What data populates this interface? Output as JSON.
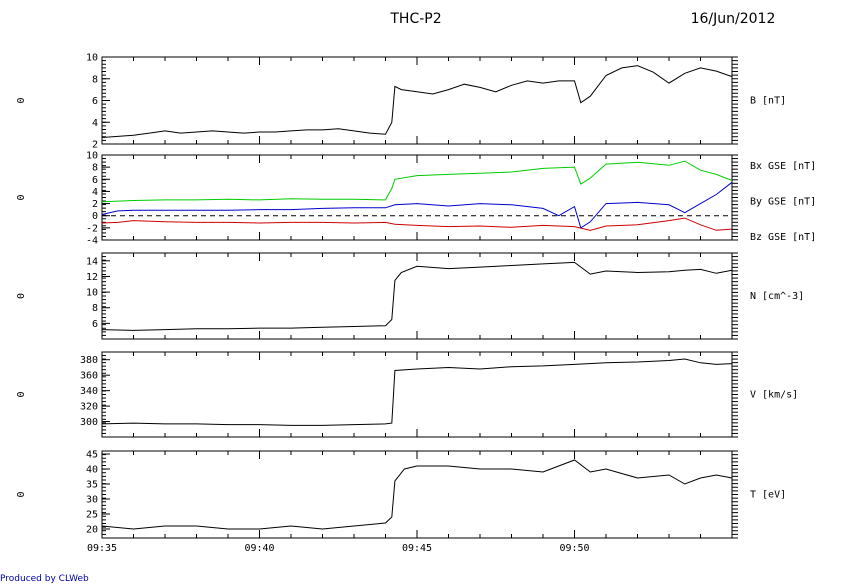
{
  "header": {
    "title": "THC-P2",
    "date": "16/Jun/2012"
  },
  "footer": {
    "credit": "Produced by CLWeb",
    "credit_color": "#0000aa"
  },
  "panel_left_label": "0",
  "chart_data": {
    "type": "line",
    "x_ticks": [
      "09:35",
      "09:40",
      "09:45",
      "09:50"
    ],
    "xlim": [
      "09:35",
      "09:55"
    ],
    "panels": [
      {
        "id": "b",
        "ylim": [
          2,
          10
        ],
        "yticks": [
          2,
          4,
          6,
          8,
          10
        ],
        "dashed_zero": false,
        "series": [
          {
            "name": "B [nT]",
            "color": "#000000",
            "x": [
              0,
              0.5,
              1,
              1.5,
              2,
              2.5,
              3,
              3.5,
              4,
              4.5,
              5,
              5.5,
              6,
              6.5,
              7,
              7.5,
              8,
              8.5,
              9,
              9.2,
              9.3,
              9.5,
              10,
              10.5,
              11,
              11.5,
              12,
              12.5,
              13,
              13.5,
              14,
              14.5,
              15,
              15.2,
              15.5,
              16,
              16.5,
              17,
              17.5,
              18,
              18.5,
              19,
              19.5,
              20
            ],
            "y": [
              2.6,
              2.7,
              2.8,
              3.0,
              3.2,
              3.0,
              3.1,
              3.2,
              3.1,
              3.0,
              3.1,
              3.1,
              3.2,
              3.3,
              3.3,
              3.4,
              3.2,
              3.0,
              2.9,
              4.0,
              7.3,
              7.0,
              6.8,
              6.6,
              7.0,
              7.5,
              7.2,
              6.8,
              7.4,
              7.8,
              7.6,
              7.8,
              7.8,
              5.8,
              6.4,
              8.3,
              9.0,
              9.2,
              8.6,
              7.6,
              8.5,
              9.0,
              8.7,
              8.2
            ]
          }
        ]
      },
      {
        "id": "bgse",
        "ylim": [
          -4,
          10
        ],
        "yticks": [
          -4,
          -2,
          0,
          2,
          4,
          6,
          8,
          10
        ],
        "dashed_zero": true,
        "series": [
          {
            "name": "Bx GSE [nT]",
            "color": "#cc0000",
            "x": [
              0,
              0.5,
              1,
              2,
              3,
              4,
              5,
              6,
              7,
              8,
              9,
              9.3,
              10,
              11,
              12,
              13,
              14,
              15,
              15.5,
              16,
              17,
              18,
              18.5,
              19,
              19.5,
              20
            ],
            "y": [
              -1.2,
              -1.1,
              -0.8,
              -1.0,
              -1.1,
              -1.1,
              -1.2,
              -1.1,
              -1.1,
              -1.2,
              -1.1,
              -1.4,
              -1.6,
              -1.8,
              -1.7,
              -1.9,
              -1.6,
              -1.8,
              -2.4,
              -1.7,
              -1.5,
              -0.8,
              -0.4,
              -1.5,
              -2.4,
              -2.2
            ]
          },
          {
            "name": "By GSE [nT]",
            "color": "#00cc00",
            "x": [
              0,
              1,
              2,
              3,
              4,
              5,
              6,
              7,
              8,
              9,
              9.2,
              9.3,
              10,
              11,
              12,
              13,
              14,
              15,
              15.2,
              15.5,
              16,
              17,
              18,
              18.5,
              19,
              19.5,
              20
            ],
            "y": [
              2.3,
              2.5,
              2.6,
              2.6,
              2.7,
              2.6,
              2.8,
              2.7,
              2.7,
              2.6,
              4.5,
              6.0,
              6.6,
              6.8,
              7.0,
              7.2,
              7.8,
              8.0,
              5.2,
              6.2,
              8.5,
              8.8,
              8.3,
              9.0,
              7.5,
              6.8,
              5.8
            ]
          },
          {
            "name": "Bz GSE [nT]",
            "color": "#0000cc",
            "x": [
              0,
              0.5,
              1,
              2,
              3,
              4,
              5,
              6,
              7,
              8,
              9,
              9.3,
              10,
              11,
              12,
              13,
              14,
              14.5,
              15,
              15.2,
              15.5,
              16,
              17,
              18,
              18.5,
              19,
              19.5,
              20
            ],
            "y": [
              0.2,
              0.8,
              0.9,
              0.9,
              0.9,
              0.9,
              1.0,
              1.0,
              1.2,
              1.3,
              1.3,
              1.8,
              2.0,
              1.6,
              2.0,
              1.8,
              1.2,
              0.0,
              1.5,
              -2.0,
              -1.0,
              2.0,
              2.2,
              1.8,
              0.5,
              2.0,
              3.5,
              5.5
            ]
          }
        ]
      },
      {
        "id": "n",
        "ylim": [
          4,
          15
        ],
        "yticks": [
          6,
          8,
          10,
          12,
          14
        ],
        "dashed_zero": false,
        "series": [
          {
            "name": "N [cm^-3]",
            "color": "#000000",
            "x": [
              0,
              1,
              2,
              3,
              4,
              5,
              6,
              7,
              8,
              9,
              9.2,
              9.3,
              9.5,
              10,
              11,
              12,
              13,
              14,
              15,
              15.5,
              16,
              17,
              18,
              18.5,
              19,
              19.5,
              20
            ],
            "y": [
              5.2,
              5.1,
              5.2,
              5.3,
              5.3,
              5.4,
              5.4,
              5.5,
              5.6,
              5.7,
              6.5,
              11.5,
              12.5,
              13.3,
              13.0,
              13.2,
              13.4,
              13.6,
              13.8,
              12.3,
              12.7,
              12.5,
              12.6,
              12.8,
              12.9,
              12.4,
              12.8
            ]
          }
        ]
      },
      {
        "id": "v",
        "ylim": [
          280,
          390
        ],
        "yticks": [
          300,
          320,
          340,
          360,
          380
        ],
        "dashed_zero": false,
        "series": [
          {
            "name": "V [km/s]",
            "color": "#000000",
            "x": [
              0,
              1,
              2,
              3,
              4,
              5,
              6,
              7,
              8,
              9,
              9.2,
              9.3,
              10,
              11,
              12,
              13,
              14,
              15,
              16,
              17,
              18,
              18.5,
              19,
              19.5,
              20
            ],
            "y": [
              297,
              298,
              297,
              297,
              296,
              296,
              295,
              295,
              296,
              297,
              298,
              366,
              368,
              370,
              368,
              371,
              372,
              374,
              376,
              377,
              379,
              381,
              376,
              374,
              375
            ]
          }
        ]
      },
      {
        "id": "t",
        "ylim": [
          17,
          46
        ],
        "yticks": [
          20,
          25,
          30,
          35,
          40,
          45
        ],
        "dashed_zero": false,
        "series": [
          {
            "name": "T [eV]",
            "color": "#000000",
            "x": [
              0,
              1,
              2,
              3,
              4,
              5,
              6,
              7,
              8,
              9,
              9.2,
              9.3,
              9.6,
              10,
              11,
              12,
              13,
              14,
              15,
              15.5,
              16,
              17,
              18,
              18.5,
              19,
              19.5,
              20
            ],
            "y": [
              21,
              20,
              21,
              21,
              20,
              20,
              21,
              20,
              21,
              22,
              24,
              36,
              40,
              41,
              41,
              40,
              40,
              39,
              43,
              39,
              40,
              37,
              38,
              35,
              37,
              38,
              37
            ]
          }
        ]
      }
    ]
  }
}
